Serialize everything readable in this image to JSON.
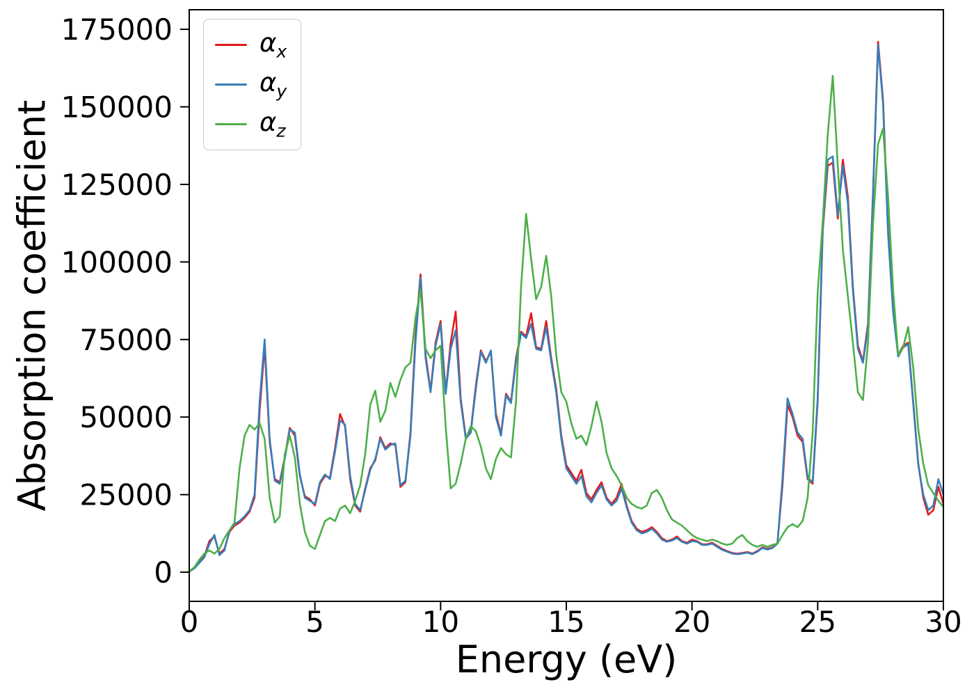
{
  "figure": {
    "background": "#ffffff",
    "axes_color": "#000000"
  },
  "chart_data": {
    "type": "line",
    "title": "",
    "xlabel": "Energy (eV)",
    "ylabel": "Absorption coefficient",
    "xlim": [
      0,
      30
    ],
    "ylim": [
      -9400,
      181300
    ],
    "xticks": [
      0,
      5,
      10,
      15,
      20,
      25,
      30
    ],
    "yticks": [
      0,
      25000,
      50000,
      75000,
      100000,
      125000,
      150000,
      175000
    ],
    "grid": false,
    "legend_position": "upper-left",
    "x_start": 0,
    "x_end": 30,
    "x_step": 0.2,
    "series": [
      {
        "name": "alpha_x",
        "label": "α_x",
        "legend_base": "α",
        "legend_sub": "x",
        "color": "#e41a1c",
        "values": [
          300,
          1500,
          3500,
          5000,
          10000,
          11500,
          6000,
          7500,
          13000,
          15000,
          16000,
          17500,
          19500,
          24000,
          52000,
          73000,
          42000,
          30000,
          29000,
          37000,
          46500,
          44000,
          31000,
          24500,
          23500,
          21500,
          28500,
          31000,
          30500,
          40000,
          51000,
          47000,
          30000,
          21500,
          19500,
          27000,
          33500,
          36000,
          43500,
          40000,
          41500,
          41000,
          27500,
          29000,
          45000,
          76000,
          96000,
          70000,
          58500,
          74000,
          81000,
          58000,
          74000,
          84000,
          56000,
          43500,
          45500,
          60000,
          71500,
          68000,
          71000,
          51000,
          44500,
          57500,
          55000,
          69000,
          77500,
          76000,
          83500,
          72500,
          72000,
          81000,
          69000,
          59000,
          44000,
          34500,
          32000,
          29500,
          33000,
          25500,
          23500,
          26500,
          29000,
          24000,
          22000,
          24000,
          28500,
          21500,
          16500,
          14000,
          13000,
          13500,
          14500,
          13000,
          11000,
          10000,
          10500,
          11500,
          10000,
          9500,
          10500,
          10000,
          9000,
          9000,
          9500,
          8500,
          7500,
          6800,
          6200,
          6000,
          6200,
          6500,
          6000,
          6800,
          8000,
          7500,
          8000,
          9500,
          28000,
          54000,
          50000,
          44000,
          42000,
          30000,
          28500,
          55000,
          110000,
          131000,
          132000,
          114000,
          133000,
          121000,
          92000,
          73000,
          68000,
          80000,
          122000,
          171000,
          152000,
          110000,
          85000,
          70000,
          73000,
          74000,
          55000,
          35000,
          24000,
          18500,
          20000,
          27500,
          22000
        ]
      },
      {
        "name": "alpha_y",
        "label": "α_y",
        "legend_base": "α",
        "legend_sub": "y",
        "color": "#377eb8",
        "values": [
          200,
          1200,
          3000,
          4800,
          9000,
          12000,
          5500,
          7000,
          13500,
          15500,
          16500,
          18000,
          20000,
          25000,
          55000,
          75000,
          43000,
          29500,
          28500,
          36500,
          46000,
          45000,
          31500,
          24000,
          23000,
          22000,
          29000,
          31500,
          30000,
          39000,
          49000,
          47500,
          31000,
          22000,
          20000,
          26500,
          33000,
          36500,
          43000,
          39500,
          41000,
          41500,
          28000,
          29500,
          44000,
          74000,
          95000,
          69000,
          58000,
          73000,
          80000,
          57500,
          72000,
          78000,
          55000,
          43000,
          45000,
          59000,
          71000,
          67500,
          71500,
          50000,
          44000,
          57000,
          54500,
          68000,
          77000,
          75500,
          80000,
          72000,
          71500,
          79000,
          68000,
          58000,
          43000,
          33500,
          31000,
          28500,
          31000,
          24500,
          22500,
          25500,
          28000,
          23500,
          21500,
          23000,
          27000,
          21000,
          16000,
          13500,
          12500,
          13000,
          14000,
          12500,
          10500,
          9800,
          10200,
          11000,
          9800,
          9200,
          10000,
          9800,
          8800,
          8800,
          9200,
          8200,
          7200,
          6600,
          6000,
          5800,
          6000,
          6300,
          5800,
          6600,
          7800,
          7300,
          7800,
          9200,
          30000,
          56000,
          51000,
          45000,
          43000,
          30500,
          29000,
          56000,
          111000,
          133000,
          134000,
          115000,
          131000,
          119000,
          91000,
          72000,
          67500,
          79000,
          121000,
          170000,
          151000,
          109000,
          84000,
          69500,
          72500,
          73500,
          54500,
          34500,
          25000,
          20000,
          21500,
          30000,
          25000
        ]
      },
      {
        "name": "alpha_z",
        "label": "α_z",
        "legend_base": "α",
        "legend_sub": "z",
        "color": "#4daf4a",
        "values": [
          300,
          1500,
          4000,
          6000,
          7000,
          6000,
          7500,
          11000,
          13500,
          16000,
          33500,
          44000,
          47500,
          46000,
          48000,
          43000,
          24000,
          16000,
          18000,
          38000,
          44000,
          37000,
          22000,
          13000,
          8500,
          7500,
          12000,
          16500,
          17500,
          16500,
          20500,
          21500,
          19000,
          23000,
          28000,
          38000,
          54000,
          58500,
          48500,
          52000,
          61000,
          56500,
          62000,
          66000,
          67500,
          82000,
          91000,
          72000,
          69000,
          71500,
          73000,
          47000,
          27000,
          28500,
          35000,
          43000,
          47000,
          45500,
          40500,
          33500,
          30000,
          36500,
          40000,
          38000,
          37000,
          55000,
          92000,
          115500,
          101000,
          88000,
          92000,
          102000,
          89000,
          70000,
          58000,
          55000,
          48000,
          43000,
          44000,
          41000,
          47000,
          55000,
          48500,
          38500,
          33500,
          31000,
          28000,
          24000,
          22000,
          21000,
          20500,
          21500,
          25500,
          26500,
          24000,
          20000,
          17000,
          16000,
          15000,
          13500,
          12000,
          11000,
          10500,
          10000,
          10500,
          10000,
          9200,
          8800,
          9200,
          11000,
          12000,
          10000,
          8800,
          8200,
          8800,
          8200,
          8800,
          9200,
          12000,
          14500,
          15500,
          14500,
          16500,
          24000,
          45000,
          90000,
          113000,
          141000,
          160000,
          131000,
          104000,
          89000,
          74000,
          58000,
          55500,
          74000,
          112000,
          138000,
          143000,
          121000,
          91000,
          70000,
          72500,
          79000,
          66000,
          46000,
          35000,
          28000,
          25500,
          23000,
          21000
        ]
      }
    ]
  }
}
